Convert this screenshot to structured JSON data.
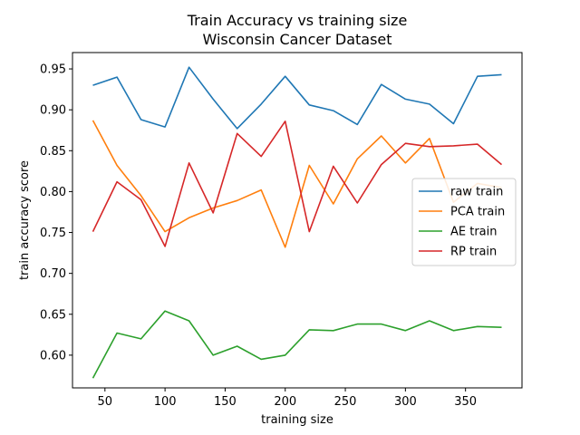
{
  "chart_data": {
    "type": "line",
    "title": "Train Accuracy vs training size",
    "subtitle": "Wisconsin Cancer Dataset",
    "xlabel": "training size",
    "ylabel": "train accuracy score",
    "xlim": [
      23,
      397
    ],
    "ylim": [
      0.56,
      0.97
    ],
    "xticks": [
      50,
      100,
      150,
      200,
      250,
      300,
      350
    ],
    "yticks": [
      0.6,
      0.65,
      0.7,
      0.75,
      0.8,
      0.85,
      0.9,
      0.95
    ],
    "xtick_labels": [
      "50",
      "100",
      "150",
      "200",
      "250",
      "300",
      "350"
    ],
    "ytick_labels": [
      "0.60",
      "0.65",
      "0.70",
      "0.75",
      "0.80",
      "0.85",
      "0.90",
      "0.95"
    ],
    "grid": false,
    "legend_position": "center-right",
    "x": [
      40,
      60,
      80,
      100,
      120,
      140,
      160,
      180,
      200,
      220,
      240,
      260,
      280,
      300,
      320,
      340,
      360,
      380
    ],
    "series": [
      {
        "name": "raw train",
        "color": "#1f77b4",
        "values": [
          0.93,
          0.94,
          0.888,
          0.879,
          0.952,
          0.913,
          0.877,
          0.907,
          0.941,
          0.906,
          0.899,
          0.882,
          0.931,
          0.913,
          0.907,
          0.883,
          0.941,
          0.943
        ]
      },
      {
        "name": "PCA train",
        "color": "#ff7f0e",
        "values": [
          0.887,
          0.832,
          0.795,
          0.751,
          0.768,
          0.78,
          0.789,
          0.802,
          0.732,
          0.832,
          0.785,
          0.84,
          0.868,
          0.835,
          0.865,
          0.787,
          0.81,
          0.805
        ]
      },
      {
        "name": "AE train",
        "color": "#2ca02c",
        "values": [
          0.572,
          0.627,
          0.62,
          0.654,
          0.642,
          0.6,
          0.611,
          0.595,
          0.6,
          0.631,
          0.63,
          0.638,
          0.638,
          0.63,
          0.642,
          0.63,
          0.635,
          0.634
        ]
      },
      {
        "name": "RP train",
        "color": "#d62728",
        "values": [
          0.751,
          0.812,
          0.79,
          0.733,
          0.835,
          0.774,
          0.871,
          0.843,
          0.886,
          0.751,
          0.831,
          0.786,
          0.833,
          0.859,
          0.855,
          0.856,
          0.858,
          0.833
        ]
      }
    ]
  }
}
